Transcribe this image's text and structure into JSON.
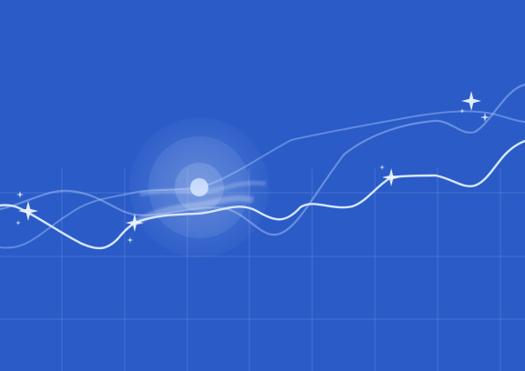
{
  "colors": {
    "background": "#2a5bc6",
    "grid_line": "#6f93e0",
    "main_line": "#d7e6ff",
    "faint_line": "#8eb0f0",
    "sparkle": "#e8f1ff",
    "pulse_core": "#cfe0ff"
  },
  "icons": {
    "sparkle": "four-point-star-icon",
    "pulse": "radial-pulse-icon"
  }
}
